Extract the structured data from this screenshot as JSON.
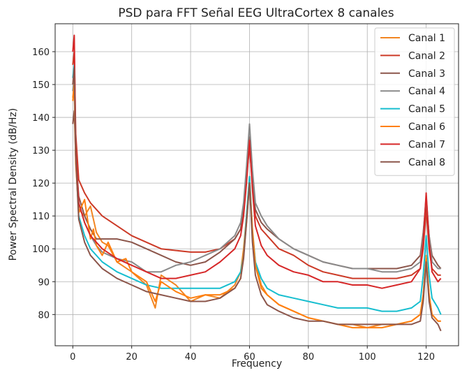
{
  "chart_data": {
    "type": "line",
    "title": "PSD para FFT Señal EEG UltraCortex 8 canales",
    "xlabel": "Frequency",
    "ylabel": "Power Spectral Density (dB/Hz)",
    "xlim": [
      -6,
      131
    ],
    "ylim": [
      70.5,
      168.5
    ],
    "xticks": [
      0,
      20,
      40,
      60,
      80,
      100,
      120
    ],
    "yticks": [
      80,
      90,
      100,
      110,
      120,
      130,
      140,
      150,
      160
    ],
    "grid": true,
    "legend_position": "top-right",
    "series": [
      {
        "name": "Canal 1",
        "color": "#f28522",
        "x": [
          0,
          0.5,
          1,
          2,
          4,
          6,
          8,
          10,
          12,
          15,
          20,
          25,
          28,
          30,
          35,
          40,
          45,
          50,
          55,
          57,
          58,
          59,
          60,
          61,
          62,
          64,
          66,
          70,
          75,
          80,
          85,
          90,
          95,
          100,
          105,
          110,
          115,
          118,
          119,
          120,
          121,
          122,
          124,
          125
        ],
        "y": [
          146,
          150,
          128,
          112,
          110,
          113,
          105,
          102,
          101,
          96,
          93,
          89,
          82,
          92,
          89,
          84,
          86,
          85,
          89,
          93,
          100,
          110,
          122,
          106,
          96,
          89,
          86,
          83,
          81,
          79,
          78,
          77,
          77,
          76,
          77,
          77,
          78,
          80,
          86,
          98,
          86,
          80,
          78,
          78
        ]
      },
      {
        "name": "Canal 2",
        "color": "#cc3a27",
        "x": [
          0,
          0.5,
          1,
          2,
          4,
          6,
          10,
          15,
          20,
          25,
          30,
          35,
          40,
          45,
          50,
          55,
          57,
          58,
          59,
          60,
          61,
          62,
          64,
          66,
          70,
          75,
          80,
          85,
          90,
          95,
          100,
          105,
          110,
          115,
          118,
          119,
          120,
          121,
          122,
          124,
          125
        ],
        "y": [
          156,
          160,
          135,
          121,
          117,
          114,
          110,
          107,
          104,
          102,
          100,
          99.5,
          99,
          99,
          100,
          103,
          106,
          112,
          122,
          131,
          120,
          110,
          106,
          104,
          100,
          98,
          95,
          93,
          92,
          91,
          91,
          91,
          91,
          92,
          94,
          100,
          112,
          100,
          94,
          92,
          92
        ]
      },
      {
        "name": "Canal 3",
        "color": "#8c564b",
        "x": [
          0,
          0.5,
          1,
          2,
          4,
          6,
          8,
          10,
          15,
          20,
          25,
          30,
          35,
          40,
          45,
          50,
          55,
          57,
          58,
          59,
          60,
          61,
          62,
          64,
          66,
          70,
          75,
          80,
          85,
          90,
          95,
          100,
          105,
          110,
          115,
          118,
          119,
          120,
          121,
          122,
          124,
          125
        ],
        "y": [
          138,
          142,
          128,
          116,
          110,
          106,
          103,
          103,
          103,
          102,
          100,
          98,
          96,
          95,
          96,
          99,
          103,
          106,
          112,
          123,
          134,
          120,
          112,
          108,
          106,
          103,
          100,
          98,
          96,
          95,
          94,
          94,
          94,
          94,
          95,
          98,
          105,
          115,
          104,
          98,
          95,
          94
        ]
      },
      {
        "name": "Canal 4",
        "color": "#8a8a8a",
        "x": [
          0,
          0.5,
          1,
          2,
          4,
          6,
          8,
          10,
          15,
          20,
          25,
          30,
          35,
          40,
          45,
          50,
          55,
          57,
          58,
          59,
          60,
          61,
          62,
          64,
          66,
          70,
          75,
          80,
          85,
          90,
          95,
          100,
          105,
          110,
          115,
          118,
          119,
          120,
          121,
          122,
          124,
          125
        ],
        "y": [
          148,
          152,
          130,
          114,
          108,
          104,
          101,
          99,
          97,
          96,
          93,
          93,
          95,
          96,
          98,
          100,
          104,
          108,
          114,
          125,
          138,
          124,
          114,
          110,
          107,
          103,
          100,
          98,
          96,
          95,
          94,
          94,
          93,
          93,
          94,
          96,
          104,
          116,
          104,
          96,
          94,
          94
        ]
      },
      {
        "name": "Canal 5",
        "color": "#17becf",
        "x": [
          0,
          0.5,
          1,
          2,
          4,
          6,
          10,
          15,
          20,
          25,
          30,
          35,
          40,
          45,
          50,
          55,
          57,
          58,
          59,
          60,
          61,
          62,
          64,
          66,
          70,
          75,
          80,
          85,
          90,
          95,
          100,
          105,
          110,
          115,
          118,
          119,
          120,
          121,
          122,
          124,
          125
        ],
        "y": [
          152,
          156,
          128,
          110,
          104,
          100,
          96,
          93,
          91,
          89,
          88,
          88,
          88,
          88,
          88,
          90,
          93,
          98,
          110,
          122,
          105,
          96,
          91,
          88,
          86,
          85,
          84,
          83,
          82,
          82,
          82,
          81,
          81,
          82,
          84,
          92,
          104,
          92,
          85,
          82,
          80
        ]
      },
      {
        "name": "Canal 6",
        "color": "#ff7f0e",
        "x": [
          0,
          0.5,
          1,
          2,
          3,
          4,
          5,
          6,
          7,
          8,
          10,
          12,
          15,
          18,
          20,
          25,
          28,
          30,
          35,
          40,
          45,
          50,
          55,
          57,
          58,
          59,
          60,
          61,
          62,
          64,
          66,
          70,
          75,
          80,
          85,
          90,
          95,
          100,
          105,
          110,
          115,
          118,
          119,
          120,
          121,
          122,
          124,
          125
        ],
        "y": [
          145,
          150,
          126,
          111,
          113,
          115,
          109,
          103,
          106,
          101,
          98,
          102,
          96,
          97,
          93,
          90,
          84,
          90,
          87,
          85,
          86,
          86,
          88,
          91,
          98,
          108,
          120,
          105,
          95,
          88,
          86,
          83,
          81,
          79,
          78,
          77,
          76,
          76,
          76,
          77,
          78,
          80,
          86,
          97,
          86,
          80,
          78,
          78
        ]
      },
      {
        "name": "Canal 7",
        "color": "#d62728",
        "x": [
          0,
          0.5,
          1,
          2,
          4,
          6,
          10,
          15,
          20,
          25,
          30,
          35,
          40,
          45,
          50,
          55,
          57,
          58,
          59,
          60,
          61,
          62,
          64,
          66,
          70,
          75,
          80,
          85,
          90,
          95,
          100,
          105,
          110,
          115,
          118,
          119,
          120,
          121,
          122,
          124,
          125
        ],
        "y": [
          160,
          165,
          130,
          114,
          108,
          104,
          100,
          97,
          95,
          93,
          91,
          91,
          92,
          93,
          96,
          100,
          104,
          110,
          120,
          133,
          118,
          107,
          101,
          98,
          95,
          93,
          92,
          90,
          90,
          89,
          89,
          88,
          89,
          90,
          94,
          102,
          117,
          102,
          93,
          90,
          91
        ]
      },
      {
        "name": "Canal 8",
        "color": "#8c564b",
        "x": [
          0,
          0.5,
          1,
          2,
          4,
          6,
          10,
          15,
          20,
          25,
          30,
          35,
          40,
          45,
          50,
          55,
          57,
          58,
          59,
          60,
          61,
          62,
          64,
          66,
          70,
          75,
          80,
          85,
          90,
          95,
          100,
          105,
          110,
          115,
          118,
          119,
          120,
          121,
          122,
          124,
          125
        ],
        "y": [
          150,
          155,
          128,
          109,
          102,
          98,
          94,
          91,
          89,
          87,
          86,
          85,
          84,
          84,
          85,
          88,
          91,
          97,
          108,
          120,
          102,
          92,
          86,
          83,
          81,
          79,
          78,
          78,
          77,
          77,
          77,
          77,
          77,
          77,
          78,
          84,
          96,
          84,
          79,
          77,
          75
        ]
      }
    ]
  }
}
